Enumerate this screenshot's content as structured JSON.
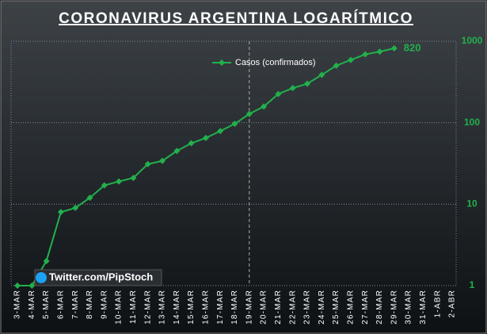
{
  "chart_data": {
    "type": "line",
    "title": "CORONAVIRUS ARGENTINA LOGARÍTMICO",
    "categories": [
      "3-MAR",
      "4-MAR",
      "5-MAR",
      "6-MAR",
      "7-MAR",
      "8-MAR",
      "9-MAR",
      "10-MAR",
      "11-MAR",
      "12-MAR",
      "13-MAR",
      "14-MAR",
      "15-MAR",
      "16-MAR",
      "17-MAR",
      "18-MAR",
      "19-MAR",
      "20-MAR",
      "21-MAR",
      "22-MAR",
      "23-MAR",
      "24-MAR",
      "25-MAR",
      "26-MAR",
      "27-MAR",
      "28-MAR",
      "29-MAR",
      "30-MAR",
      "31-MAR",
      "1-ABR",
      "2-ABR"
    ],
    "series": [
      {
        "name": "Casos (confirmados)",
        "color": "#22b04b",
        "values": [
          1,
          1,
          2,
          8,
          9,
          12,
          17,
          19,
          21,
          31,
          34,
          45,
          56,
          65,
          79,
          97,
          128,
          158,
          225,
          266,
          301,
          387,
          502,
          589,
          690,
          745,
          820,
          null,
          null,
          null,
          null
        ]
      }
    ],
    "ylim": [
      1,
      1000
    ],
    "yticks": [
      1,
      10,
      100,
      1000
    ],
    "log_scale": true,
    "grid": true,
    "legend": "top",
    "annotation": "Twitter.com/PipStoch"
  }
}
